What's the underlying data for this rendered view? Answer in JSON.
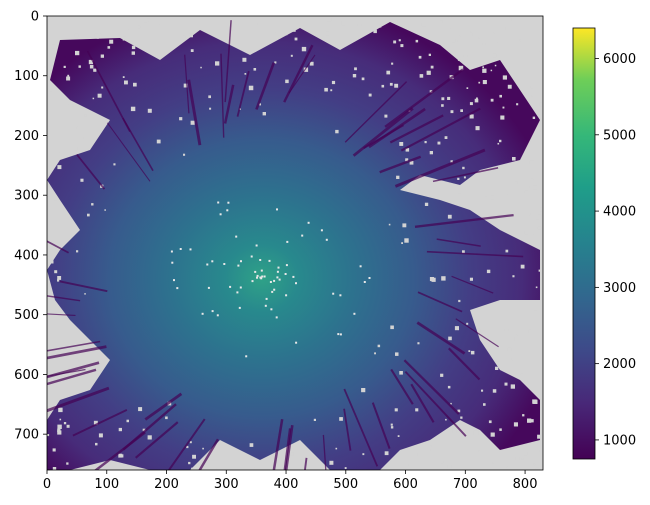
{
  "chart_data": {
    "type": "heatmap",
    "title": "",
    "xlabel": "",
    "ylabel": "",
    "x_extent": [
      0,
      830
    ],
    "y_extent": [
      0,
      760
    ],
    "y_axis": "inverted",
    "xticks": [
      0,
      100,
      200,
      300,
      400,
      500,
      600,
      700,
      800
    ],
    "xtick_labels": [
      "0",
      "100",
      "200",
      "300",
      "400",
      "500",
      "600",
      "700",
      "800"
    ],
    "yticks": [
      0,
      100,
      200,
      300,
      400,
      500,
      600,
      700
    ],
    "ytick_labels": [
      "0",
      "100",
      "200",
      "300",
      "400",
      "500",
      "600",
      "700"
    ],
    "colormap": "viridis",
    "nodata_color": "#d3d3d3",
    "color_range": [
      750,
      6400
    ],
    "colorbar_ticks": [
      1000,
      2000,
      3000,
      4000,
      5000,
      6000
    ],
    "colorbar_tick_labels": [
      "1000",
      "2000",
      "3000",
      "4000",
      "5000",
      "6000"
    ],
    "peak": {
      "x": 360,
      "y": 435,
      "value": 3900
    },
    "grid": false
  }
}
